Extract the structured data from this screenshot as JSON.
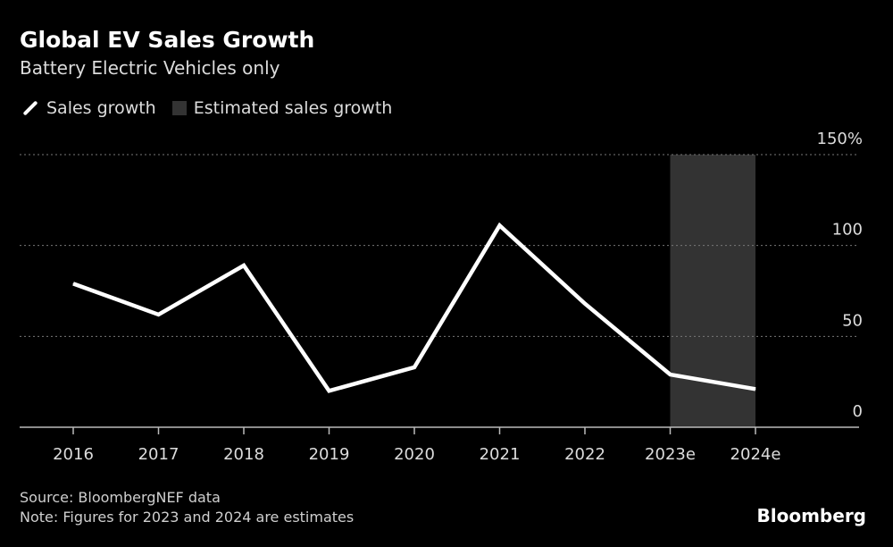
{
  "title": "Global EV Sales Growth",
  "subtitle": "Battery Electric Vehicles only",
  "legend": {
    "line_label": "Sales growth",
    "shade_label": "Estimated sales growth"
  },
  "colors": {
    "background": "#000000",
    "line": "#ffffff",
    "shade": "#333333",
    "grid": "#777777",
    "text": "#dcdcdc"
  },
  "chart_data": {
    "type": "line",
    "title": "Global EV Sales Growth",
    "subtitle": "Battery Electric Vehicles only",
    "categories": [
      "2016",
      "2017",
      "2018",
      "2019",
      "2020",
      "2021",
      "2022",
      "2023e",
      "2024e"
    ],
    "series": [
      {
        "name": "Sales growth",
        "values": [
          79,
          62,
          89,
          20,
          33,
          111,
          68,
          29,
          21
        ]
      }
    ],
    "estimated_range": [
      "2023e",
      "2024e"
    ],
    "ylim": [
      0,
      150
    ],
    "yticks": [
      0,
      50,
      100,
      150
    ],
    "ytick_labels": [
      "0",
      "50",
      "100",
      "150%"
    ],
    "xlabel": "",
    "ylabel": "",
    "grid": true,
    "legend_position": "top-left"
  },
  "footer": {
    "source": "Source: BloombergNEF data",
    "note": "Note: Figures for 2023 and 2024 are estimates",
    "brand": "Bloomberg"
  }
}
